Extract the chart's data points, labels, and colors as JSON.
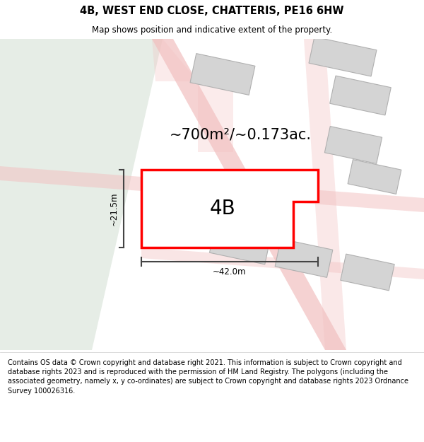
{
  "title": "4B, WEST END CLOSE, CHATTERIS, PE16 6HW",
  "subtitle": "Map shows position and indicative extent of the property.",
  "area_text": "~700m²/~0.173ac.",
  "label_4B": "4B",
  "dim_width": "~42.0m",
  "dim_height": "~21.5m",
  "footer": "Contains OS data © Crown copyright and database right 2021. This information is subject to Crown copyright and database rights 2023 and is reproduced with the permission of HM Land Registry. The polygons (including the associated geometry, namely x, y co-ordinates) are subject to Crown copyright and database rights 2023 Ordnance Survey 100026316.",
  "bg_map_color": "#f4f8f4",
  "bg_left_color": "#e6ede6",
  "road_color": "#f2bfbf",
  "building_fill": "#d4d4d4",
  "building_edge": "#b0b0b0",
  "subject_fill": "#ffffff",
  "subject_edge": "#ff0000",
  "footer_bg": "#ffffff",
  "header_bg": "#ffffff",
  "dim_color": "#444444"
}
